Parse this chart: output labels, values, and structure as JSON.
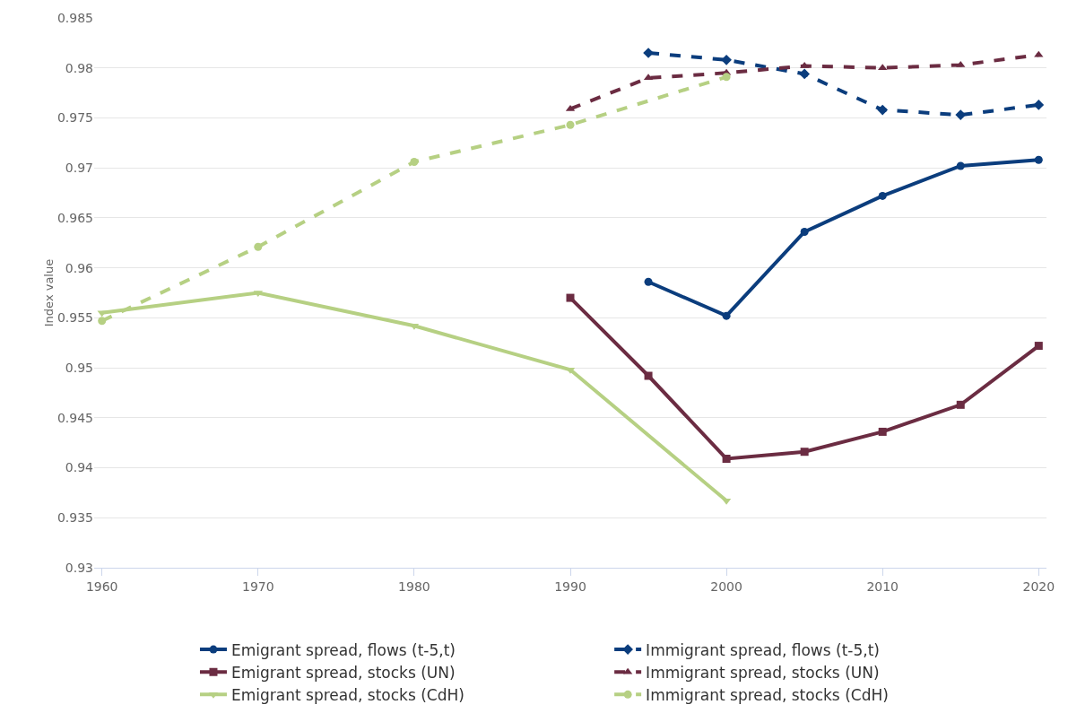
{
  "chart_data": {
    "type": "line",
    "ylabel": "Index value",
    "x": [
      1995,
      2000,
      2005,
      2010,
      2015,
      2020
    ],
    "series": [
      {
        "name": "Emigrant spread, flows (t-5,t)",
        "color": "#0b3d7d",
        "line_style": "solid",
        "marker": "circle",
        "values": [
          0.9586,
          0.9552,
          0.9636,
          0.9672,
          0.9702,
          0.9708
        ]
      },
      {
        "name": "Immigrant spread, flows (t-5,t)",
        "color": "#0b3d7d",
        "line_style": "dashed",
        "marker": "diamond",
        "values": [
          0.9815,
          0.9808,
          0.9794,
          0.9758,
          0.9753,
          0.9763
        ]
      },
      {
        "name": "Emigrant spread, stocks (UN)",
        "color": "#6b2c42",
        "line_style": "solid",
        "marker": "square",
        "x": [
          1990,
          1995,
          2000,
          2005,
          2010,
          2015,
          2020
        ],
        "values": [
          0.957,
          0.9492,
          0.9409,
          0.9416,
          0.9436,
          0.9463,
          0.9522
        ]
      },
      {
        "name": "Immigrant spread, stocks (UN)",
        "color": "#6b2c42",
        "line_style": "dashed",
        "marker": "triangle",
        "x": [
          1990,
          1995,
          2000,
          2005,
          2010,
          2015,
          2020
        ],
        "values": [
          0.9759,
          0.979,
          0.9795,
          0.9802,
          0.98,
          0.9803,
          0.9813
        ]
      },
      {
        "name": "Emigrant spread, stocks (CdH)",
        "color": "#b6d083",
        "line_style": "solid",
        "marker": "triangle-down",
        "x": [
          1960,
          1970,
          1980,
          1990,
          2000
        ],
        "values": [
          0.9555,
          0.9575,
          0.9542,
          0.9498,
          0.9367
        ]
      },
      {
        "name": "Immigrant spread, stocks (CdH)",
        "color": "#b6d083",
        "line_style": "dashed",
        "marker": "circle",
        "x": [
          1960,
          1970,
          1980,
          1990,
          2000
        ],
        "values": [
          0.9547,
          0.9621,
          0.9706,
          0.9743,
          0.9791
        ]
      }
    ],
    "xlim": [
      1959.5,
      2020.5
    ],
    "xticks": [
      1960,
      1970,
      1980,
      1990,
      2000,
      2010,
      2020
    ],
    "ylim": [
      0.93,
      0.985
    ],
    "yticks": [
      0.93,
      0.935,
      0.94,
      0.945,
      0.95,
      0.955,
      0.96,
      0.965,
      0.97,
      0.975,
      0.98,
      0.985
    ],
    "grid": "y",
    "legend": "bottom"
  }
}
